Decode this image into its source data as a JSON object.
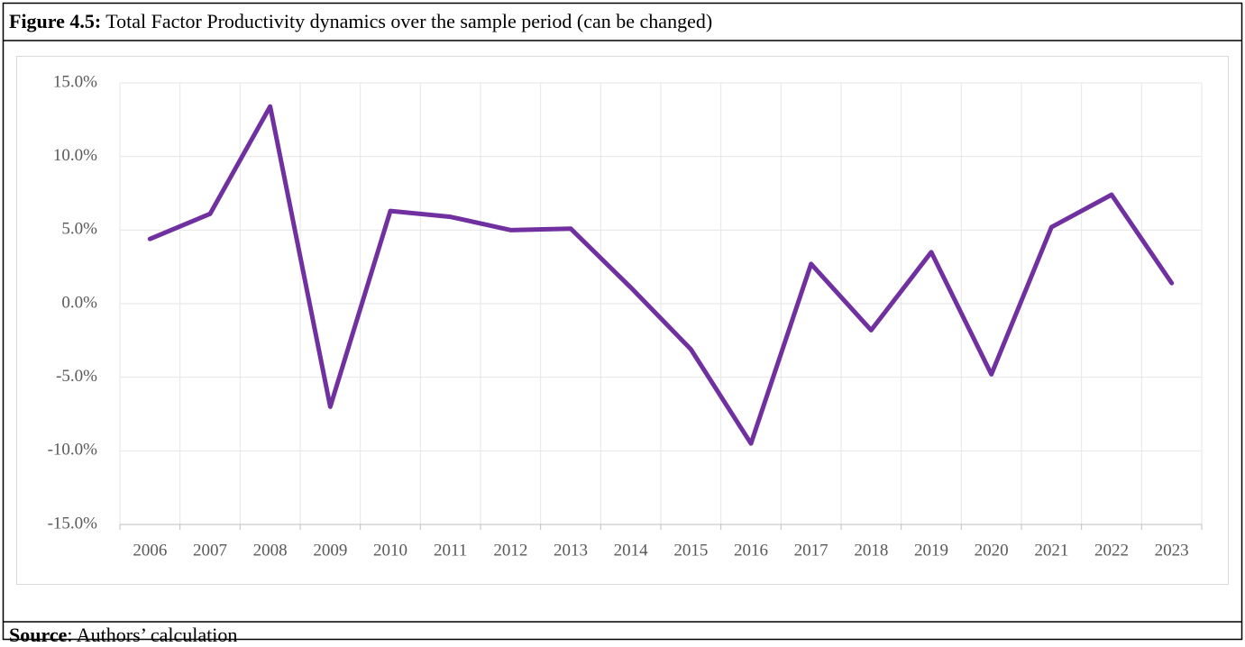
{
  "header": {
    "label": "Figure 4.5:",
    "title": "Total Factor Productivity dynamics over the sample period (can be changed)"
  },
  "chart_data": {
    "type": "line",
    "categories": [
      "2006",
      "2007",
      "2008",
      "2009",
      "2010",
      "2011",
      "2012",
      "2013",
      "2014",
      "2015",
      "2016",
      "2017",
      "2018",
      "2019",
      "2020",
      "2021",
      "2022",
      "2023"
    ],
    "series": [
      {
        "color": "#7030a0",
        "values": [
          4.4,
          6.1,
          13.4,
          -7.0,
          6.3,
          5.9,
          5.0,
          5.1,
          1.1,
          -3.1,
          -9.5,
          2.7,
          -1.8,
          3.5,
          -4.8,
          5.2,
          7.4,
          1.4
        ]
      }
    ],
    "ylim": [
      -15,
      15
    ],
    "yticks": [
      {
        "value": -15,
        "label": "-15.0%"
      },
      {
        "value": -10,
        "label": "-10.0%"
      },
      {
        "value": -5,
        "label": "-5.0%"
      },
      {
        "value": 0,
        "label": "0.0%"
      },
      {
        "value": 5,
        "label": "5.0%"
      },
      {
        "value": 10,
        "label": "10.0%"
      },
      {
        "value": 15,
        "label": "15.0%"
      }
    ],
    "grid": true
  },
  "footer": {
    "label": "Source",
    "text": ": Authors’ calculation"
  }
}
